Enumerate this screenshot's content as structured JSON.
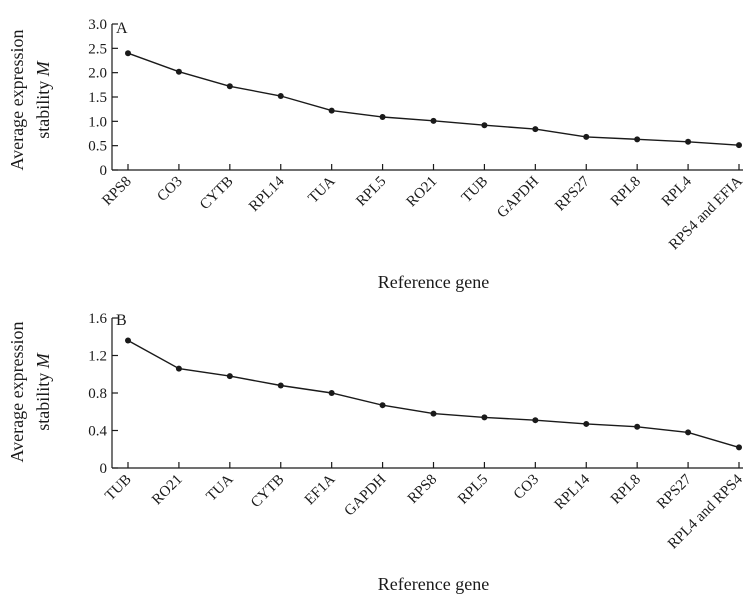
{
  "chart_data": [
    {
      "panel": "A",
      "type": "line",
      "categories": [
        "RPS8",
        "CO3",
        "CYTB",
        "RPL14",
        "TUA",
        "RPL5",
        "RO21",
        "TUB",
        "GAPDH",
        "RPS27",
        "RPL8",
        "RPL4",
        "RPS4 and EFIA"
      ],
      "values": [
        2.4,
        2.02,
        1.72,
        1.52,
        1.22,
        1.09,
        1.01,
        0.92,
        0.84,
        0.68,
        0.63,
        0.58,
        0.51
      ],
      "ylabel_line1": "Average expression",
      "ylabel_line2_prefix": "stability ",
      "ylabel_line2_var": "M",
      "xlabel": "Reference gene",
      "ylim": [
        0,
        3.0
      ],
      "yticks": [
        "0",
        "0.5",
        "1.0",
        "1.5",
        "2.0",
        "2.5",
        "3.0"
      ],
      "ytick_values": [
        0,
        0.5,
        1.0,
        1.5,
        2.0,
        2.5,
        3.0
      ],
      "grid": false
    },
    {
      "panel": "B",
      "type": "line",
      "categories": [
        "TUB",
        "RO21",
        "TUA",
        "CYTB",
        "EF1A",
        "GAPDH",
        "RPS8",
        "RPL5",
        "CO3",
        "RPL14",
        "RPL8",
        "RPS27",
        "RPL4 and RPS4"
      ],
      "values": [
        1.36,
        1.06,
        0.98,
        0.88,
        0.8,
        0.67,
        0.58,
        0.54,
        0.51,
        0.47,
        0.44,
        0.38,
        0.22
      ],
      "ylabel_line1": "Average expression",
      "ylabel_line2_prefix": "stability ",
      "ylabel_line2_var": "M",
      "xlabel": "Reference gene",
      "ylim": [
        0,
        1.6
      ],
      "yticks": [
        "0",
        "0.4",
        "0.8",
        "1.2",
        "1.6"
      ],
      "ytick_values": [
        0,
        0.4,
        0.8,
        1.2,
        1.6
      ],
      "grid": false
    }
  ]
}
